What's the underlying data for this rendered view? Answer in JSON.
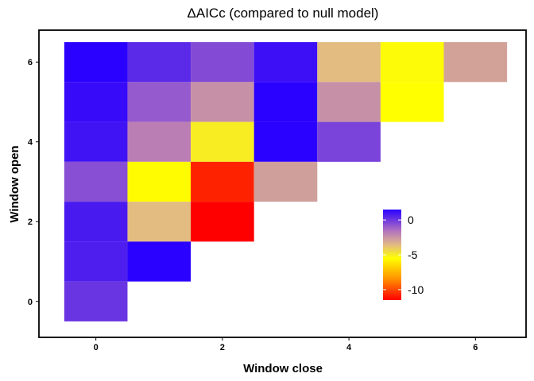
{
  "chart_data": {
    "type": "heatmap",
    "title": "ΔAICc (compared to null model)",
    "xlabel": "Window close",
    "ylabel": "Window open",
    "xlim": [
      -0.5,
      6.5
    ],
    "ylim": [
      -0.5,
      6.5
    ],
    "x_ticks": [
      0,
      2,
      4,
      6
    ],
    "y_ticks": [
      0,
      2,
      4,
      6
    ],
    "grid": false,
    "legend_position": "inside-right",
    "color_scale": {
      "min": -11.5,
      "max": 1.5,
      "stops": [
        {
          "value": 1.5,
          "color": "#2a00ff"
        },
        {
          "value": -1.5,
          "color": "#b070c0"
        },
        {
          "value": -3.5,
          "color": "#e0b888"
        },
        {
          "value": -5.5,
          "color": "#ffff00"
        },
        {
          "value": -8.5,
          "color": "#ff9000"
        },
        {
          "value": -11.5,
          "color": "#ff0000"
        }
      ],
      "ticks": [
        0,
        -5,
        -10
      ]
    },
    "cells": [
      {
        "x": 0,
        "y": 6,
        "value": 1.5
      },
      {
        "x": 1,
        "y": 6,
        "value": 0.4
      },
      {
        "x": 2,
        "y": 6,
        "value": -0.5
      },
      {
        "x": 3,
        "y": 6,
        "value": 1.1
      },
      {
        "x": 4,
        "y": 6,
        "value": -3.6
      },
      {
        "x": 5,
        "y": 6,
        "value": -5.4
      },
      {
        "x": 6,
        "y": 6,
        "value": -2.9
      },
      {
        "x": 0,
        "y": 5,
        "value": 1.2
      },
      {
        "x": 1,
        "y": 5,
        "value": -0.9
      },
      {
        "x": 2,
        "y": 5,
        "value": -2.4
      },
      {
        "x": 3,
        "y": 5,
        "value": 1.5
      },
      {
        "x": 4,
        "y": 5,
        "value": -2.4
      },
      {
        "x": 5,
        "y": 5,
        "value": -5.5
      },
      {
        "x": 0,
        "y": 4,
        "value": 1.0
      },
      {
        "x": 1,
        "y": 4,
        "value": -1.9
      },
      {
        "x": 2,
        "y": 4,
        "value": -5.0
      },
      {
        "x": 3,
        "y": 4,
        "value": 1.5
      },
      {
        "x": 4,
        "y": 4,
        "value": -0.3
      },
      {
        "x": 0,
        "y": 3,
        "value": -0.6
      },
      {
        "x": 1,
        "y": 3,
        "value": -5.6
      },
      {
        "x": 2,
        "y": 3,
        "value": -10.8
      },
      {
        "x": 3,
        "y": 3,
        "value": -2.8
      },
      {
        "x": 0,
        "y": 2,
        "value": 0.8
      },
      {
        "x": 1,
        "y": 2,
        "value": -3.6
      },
      {
        "x": 2,
        "y": 2,
        "value": -11.5
      },
      {
        "x": 0,
        "y": 1,
        "value": 0.7
      },
      {
        "x": 1,
        "y": 1,
        "value": 1.5
      },
      {
        "x": 0,
        "y": 0,
        "value": 0.1
      }
    ]
  }
}
